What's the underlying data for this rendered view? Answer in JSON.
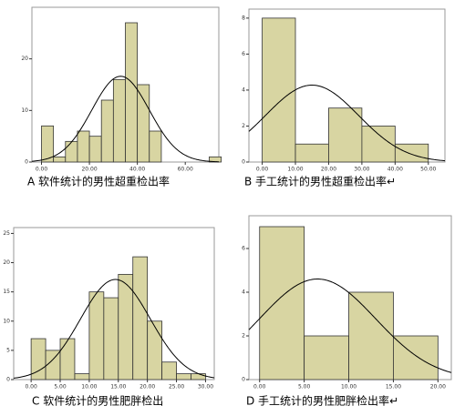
{
  "chart_data": [
    {
      "type": "histogram",
      "title": "A 软件统计的男性超重检出率",
      "bins": [
        0,
        5,
        10,
        15,
        20,
        25,
        30,
        35,
        40,
        45,
        50,
        55,
        60,
        65,
        70,
        75
      ],
      "values": [
        7,
        1,
        4,
        6,
        5,
        12,
        16,
        27,
        15,
        6,
        0,
        0,
        0,
        0,
        1
      ],
      "color": "#d8d5a2",
      "normal_mean": 33,
      "normal_sd": 12,
      "xlim": [
        -4,
        74
      ],
      "ylim": [
        0,
        30
      ],
      "xticks": [
        {
          "value": 0,
          "label": "0.00"
        },
        {
          "value": 20,
          "label": "20.00"
        },
        {
          "value": 40,
          "label": "40.00"
        },
        {
          "value": 60,
          "label": "60.00"
        }
      ],
      "yticks": [
        0,
        10,
        20
      ]
    },
    {
      "type": "histogram",
      "title": "B 手工统计的男性超重检出率↵",
      "bins": [
        0,
        10,
        20,
        30,
        40,
        50
      ],
      "values": [
        8,
        1,
        3,
        2,
        1
      ],
      "color": "#d8d5a2",
      "normal_mean": 15,
      "normal_sd": 14,
      "xlim": [
        -4,
        55
      ],
      "ylim": [
        0,
        8.5
      ],
      "xticks": [
        {
          "value": 0,
          "label": "0.00"
        },
        {
          "value": 10,
          "label": "10.00"
        },
        {
          "value": 20,
          "label": "20.00"
        },
        {
          "value": 30,
          "label": "30.00"
        },
        {
          "value": 40,
          "label": "40.00"
        },
        {
          "value": 50,
          "label": "50.00"
        }
      ],
      "yticks": [
        0,
        2,
        4,
        6,
        8
      ]
    },
    {
      "type": "histogram",
      "title": "C 软件统计的男性肥胖检出",
      "bins": [
        0,
        2.5,
        5,
        7.5,
        10,
        12.5,
        15,
        17.5,
        20,
        22.5,
        25,
        27.5,
        30
      ],
      "values": [
        7,
        5,
        7,
        1,
        15,
        14,
        18,
        21,
        10,
        3,
        1,
        1
      ],
      "color": "#d8d5a2",
      "normal_mean": 14.5,
      "normal_sd": 6,
      "xlim": [
        -3,
        31.5
      ],
      "ylim": [
        0,
        26
      ],
      "xticks": [
        {
          "value": 0,
          "label": "0.00"
        },
        {
          "value": 5,
          "label": "5.00"
        },
        {
          "value": 10,
          "label": "10.00"
        },
        {
          "value": 15,
          "label": "15.00"
        },
        {
          "value": 20,
          "label": "20.00"
        },
        {
          "value": 25,
          "label": "25.00"
        },
        {
          "value": 30,
          "label": "30.00"
        }
      ],
      "yticks": [
        0,
        5,
        10,
        15,
        20,
        25
      ]
    },
    {
      "type": "histogram",
      "title": "D 手工统计的男性肥胖检出率↵",
      "bins": [
        0,
        5,
        10,
        15,
        20
      ],
      "values": [
        7,
        2,
        4,
        2
      ],
      "color": "#d8d5a2",
      "normal_mean": 6.5,
      "normal_sd": 6.5,
      "xlim": [
        -1.2,
        21.5
      ],
      "ylim": [
        0,
        7.5
      ],
      "xticks": [
        {
          "value": 0,
          "label": "0.00"
        },
        {
          "value": 5,
          "label": "5.00"
        },
        {
          "value": 10,
          "label": "10.00"
        },
        {
          "value": 15,
          "label": "15.00"
        },
        {
          "value": 20,
          "label": "20.00"
        }
      ],
      "yticks": [
        0,
        2,
        4,
        6
      ]
    }
  ]
}
